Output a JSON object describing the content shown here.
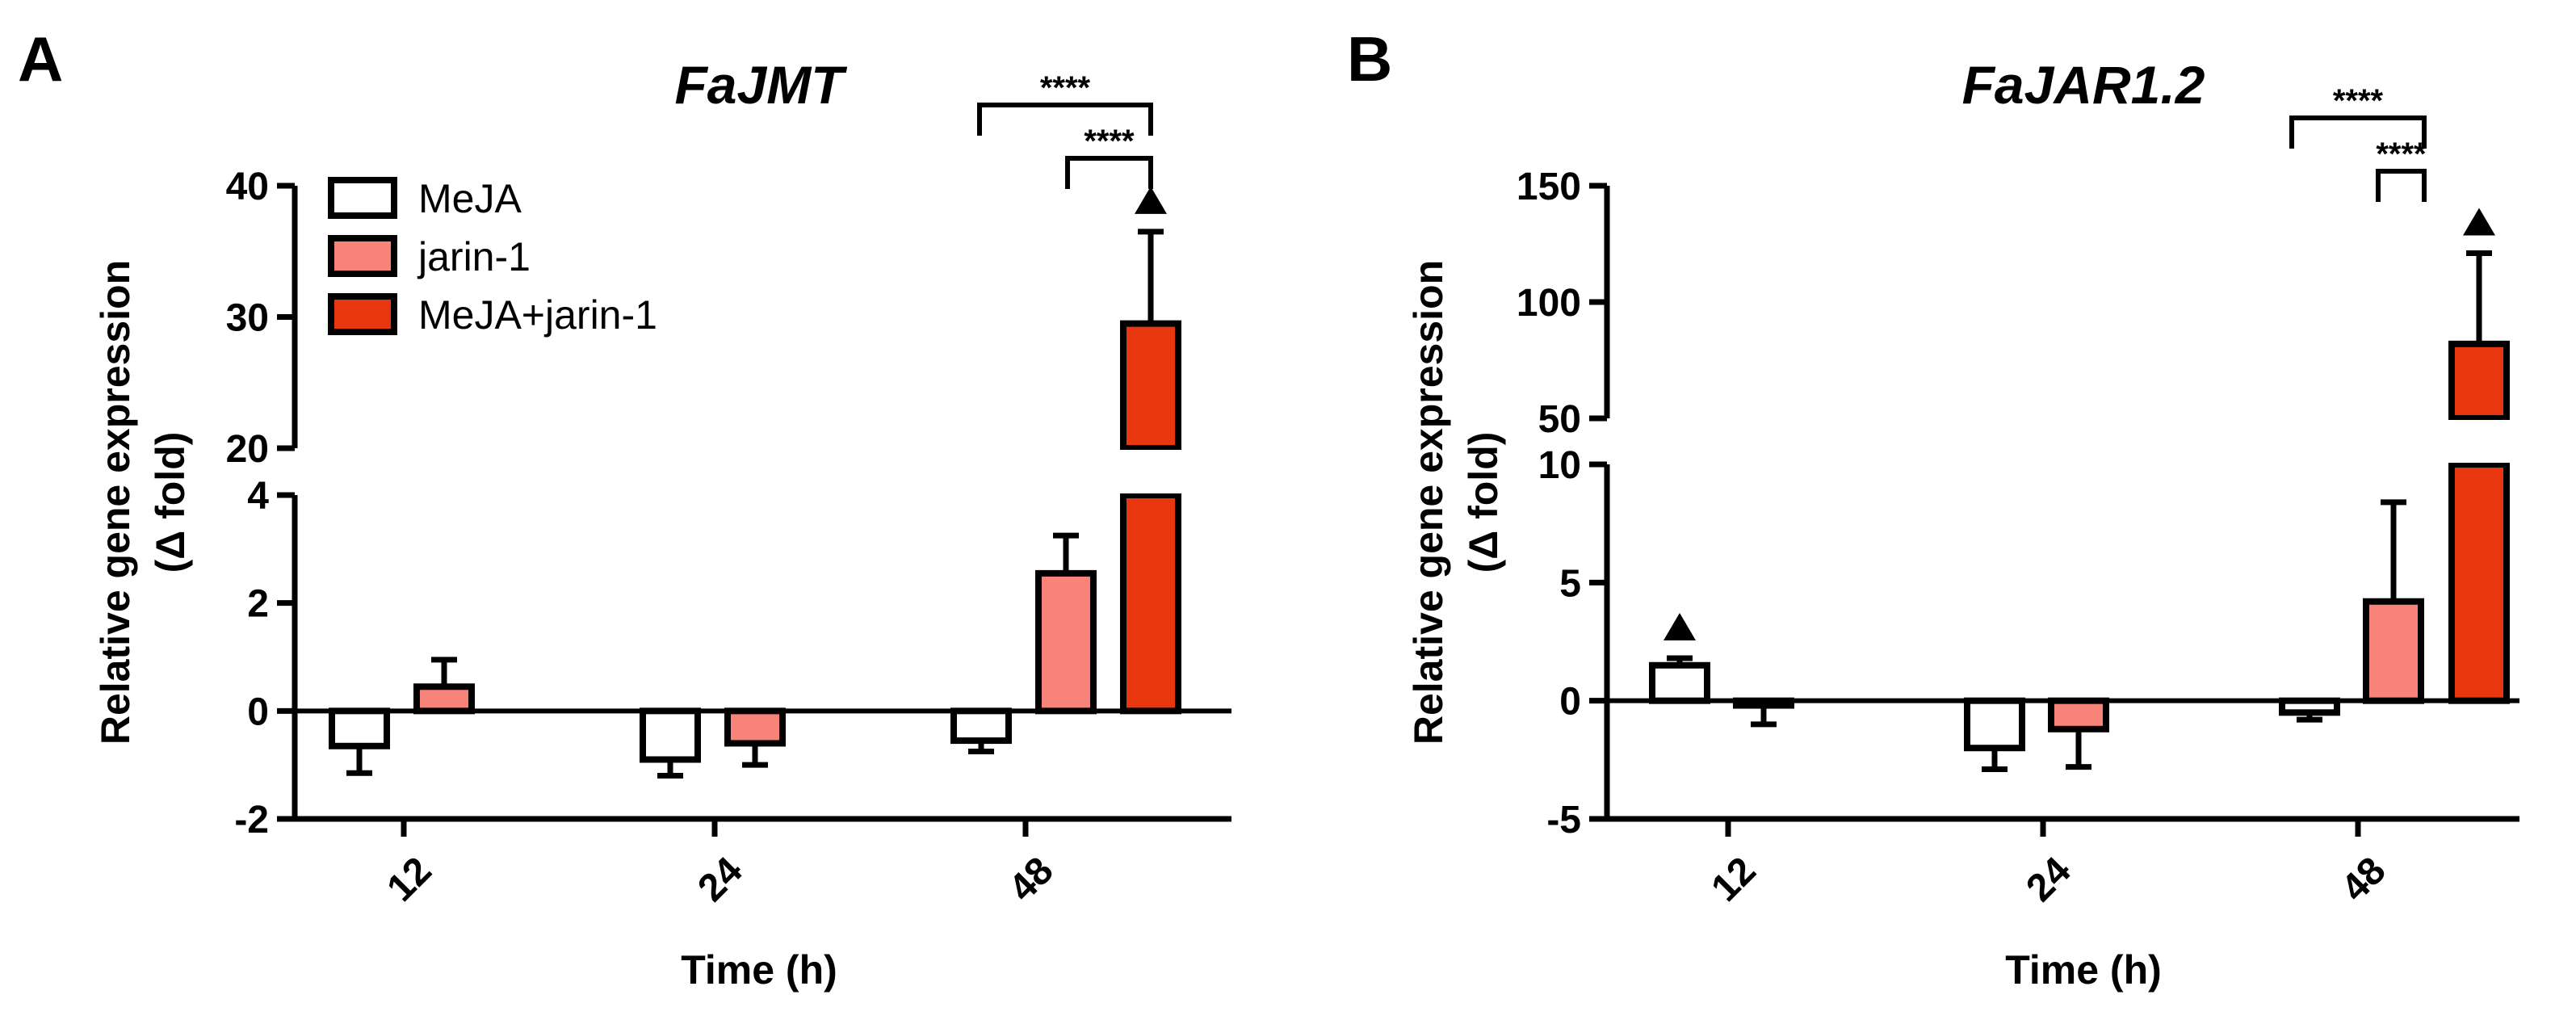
{
  "colors": {
    "meja": "#ffffff",
    "jarin": "#f88379",
    "combo": "#e8360e",
    "stroke": "#000000"
  },
  "legend": [
    "MeJA",
    "jarin-1",
    "MeJA+jarin-1"
  ],
  "x_axis_label": "Time (h)",
  "y_axis_label_line1": "Relative gene expression",
  "y_axis_label_line2": "(Δ fold)",
  "chart_data": [
    {
      "panel": "A",
      "type": "bar",
      "title": "FaJMT",
      "xlabel": "Time (h)",
      "ylabel": "Relative gene expression (Δ fold)",
      "categories": [
        "12",
        "24",
        "48"
      ],
      "series": [
        {
          "name": "MeJA",
          "values": [
            -0.65,
            -0.9,
            -0.55
          ],
          "errors": [
            0.5,
            0.3,
            0.2
          ]
        },
        {
          "name": "jarin-1",
          "values": [
            0.45,
            -0.6,
            2.55
          ],
          "errors": [
            0.5,
            0.4,
            0.7
          ]
        },
        {
          "name": "MeJA+jarin-1",
          "values": [
            null,
            null,
            29.5
          ],
          "errors": [
            null,
            null,
            7.0
          ]
        }
      ],
      "broken_axis": {
        "lower": {
          "range": [
            -2,
            4
          ],
          "ticks": [
            -2,
            0,
            2,
            4
          ],
          "tick_labels": [
            "-2",
            "0",
            "2",
            "4"
          ]
        },
        "upper": {
          "range": [
            20,
            40
          ],
          "ticks": [
            20,
            30,
            40
          ],
          "tick_labels": [
            "20",
            "30",
            "40"
          ]
        }
      },
      "triangle_markers": [
        {
          "category": "48",
          "series": "MeJA+jarin-1"
        }
      ],
      "significance": [
        {
          "label": "****",
          "from_series": "MeJA",
          "to_series": "MeJA+jarin-1",
          "category": "48"
        },
        {
          "label": "****",
          "from_series": "jarin-1",
          "to_series": "MeJA+jarin-1",
          "category": "48"
        }
      ]
    },
    {
      "panel": "B",
      "type": "bar",
      "title": "FaJAR1.2",
      "xlabel": "Time (h)",
      "ylabel": "Relative gene expression (Δ fold)",
      "categories": [
        "12",
        "24",
        "48"
      ],
      "series": [
        {
          "name": "MeJA",
          "values": [
            1.5,
            -2.0,
            -0.5
          ],
          "errors": [
            0.3,
            0.9,
            0.3
          ]
        },
        {
          "name": "jarin-1",
          "values": [
            -0.2,
            -1.2,
            4.2
          ],
          "errors": [
            0.8,
            1.6,
            4.2
          ]
        },
        {
          "name": "MeJA+jarin-1",
          "values": [
            null,
            null,
            82
          ],
          "errors": [
            null,
            null,
            39
          ]
        }
      ],
      "broken_axis": {
        "lower": {
          "range": [
            -5,
            10
          ],
          "ticks": [
            -5,
            0,
            5,
            10
          ],
          "tick_labels": [
            "-5",
            "0",
            "5",
            "10"
          ]
        },
        "upper": {
          "range": [
            50,
            150
          ],
          "ticks": [
            50,
            100,
            150
          ],
          "tick_labels": [
            "50",
            "100",
            "150"
          ]
        }
      },
      "triangle_markers": [
        {
          "category": "12",
          "series": "MeJA"
        },
        {
          "category": "48",
          "series": "MeJA+jarin-1"
        }
      ],
      "significance": [
        {
          "label": "****",
          "from_series": "MeJA",
          "to_series": "MeJA+jarin-1",
          "category": "48"
        },
        {
          "label": "****",
          "from_series": "jarin-1",
          "to_series": "MeJA+jarin-1",
          "category": "48"
        }
      ]
    }
  ]
}
